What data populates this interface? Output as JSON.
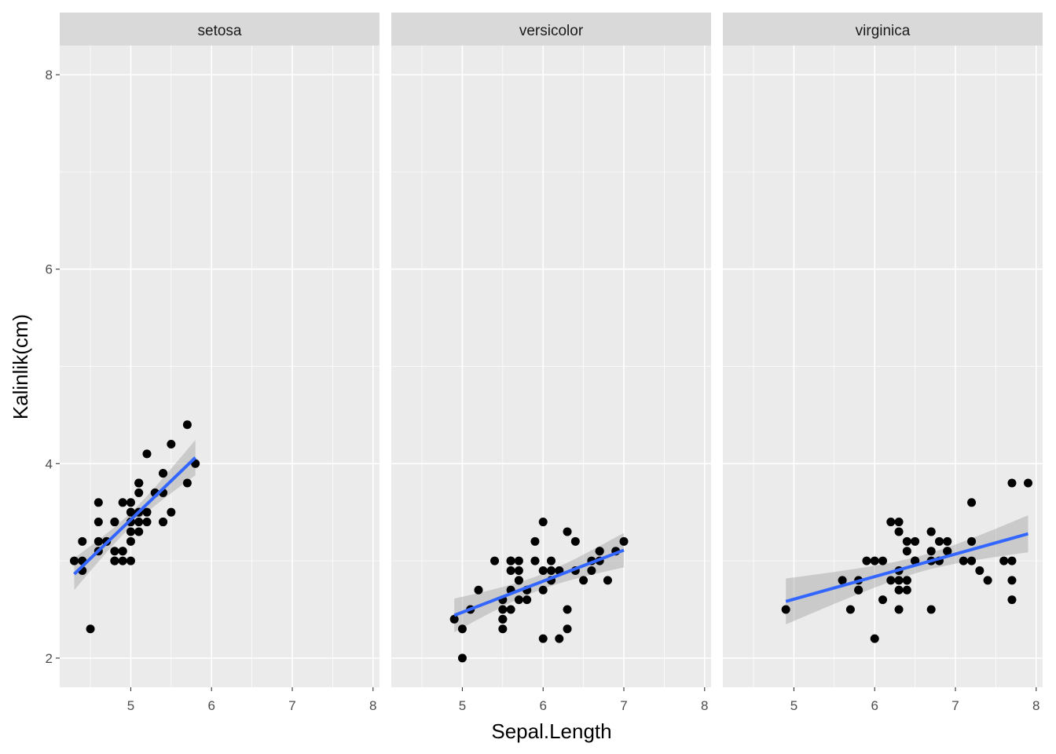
{
  "chart_data": {
    "type": "scatter",
    "title": "",
    "xlabel": "Sepal.Length",
    "ylabel": "Kalinlik(cm)",
    "xlim": [
      4.3,
      7.9
    ],
    "ylim": [
      2,
      8
    ],
    "x_ticks": [
      "5",
      "6",
      "7",
      "8"
    ],
    "y_ticks": [
      "2",
      "4",
      "6",
      "8"
    ],
    "grid": true,
    "smooth": {
      "method": "lm",
      "se": true,
      "color": "#3366FF"
    },
    "colors": {
      "panel_bg": "#EBEBEB",
      "strip_bg": "#D9D9D9",
      "grid": "#FFFFFF",
      "point": "#000000",
      "band": "#999999"
    },
    "facets": [
      {
        "label": "setosa",
        "points": [
          [
            5.1,
            3.5
          ],
          [
            4.9,
            3.0
          ],
          [
            4.7,
            3.2
          ],
          [
            4.6,
            3.1
          ],
          [
            5.0,
            3.6
          ],
          [
            5.4,
            3.9
          ],
          [
            4.6,
            3.4
          ],
          [
            5.0,
            3.4
          ],
          [
            4.4,
            2.9
          ],
          [
            4.9,
            3.1
          ],
          [
            5.4,
            3.7
          ],
          [
            4.8,
            3.4
          ],
          [
            4.8,
            3.0
          ],
          [
            4.3,
            3.0
          ],
          [
            5.8,
            4.0
          ],
          [
            5.7,
            4.4
          ],
          [
            5.4,
            3.9
          ],
          [
            5.1,
            3.5
          ],
          [
            5.7,
            3.8
          ],
          [
            5.1,
            3.8
          ],
          [
            5.4,
            3.4
          ],
          [
            5.1,
            3.7
          ],
          [
            4.6,
            3.6
          ],
          [
            5.1,
            3.3
          ],
          [
            4.8,
            3.4
          ],
          [
            5.0,
            3.0
          ],
          [
            5.0,
            3.4
          ],
          [
            5.2,
            3.5
          ],
          [
            5.2,
            3.4
          ],
          [
            4.7,
            3.2
          ],
          [
            4.8,
            3.1
          ],
          [
            5.4,
            3.4
          ],
          [
            5.2,
            4.1
          ],
          [
            5.5,
            4.2
          ],
          [
            4.9,
            3.1
          ],
          [
            5.0,
            3.2
          ],
          [
            5.5,
            3.5
          ],
          [
            4.9,
            3.6
          ],
          [
            4.4,
            3.0
          ],
          [
            5.1,
            3.4
          ],
          [
            5.0,
            3.5
          ],
          [
            4.5,
            2.3
          ],
          [
            4.4,
            3.2
          ],
          [
            5.0,
            3.5
          ],
          [
            5.1,
            3.8
          ],
          [
            4.8,
            3.0
          ],
          [
            5.1,
            3.8
          ],
          [
            4.6,
            3.2
          ],
          [
            5.3,
            3.7
          ],
          [
            5.0,
            3.3
          ]
        ]
      },
      {
        "label": "versicolor",
        "points": [
          [
            7.0,
            3.2
          ],
          [
            6.4,
            3.2
          ],
          [
            6.9,
            3.1
          ],
          [
            5.5,
            2.3
          ],
          [
            6.5,
            2.8
          ],
          [
            5.7,
            2.8
          ],
          [
            6.3,
            3.3
          ],
          [
            4.9,
            2.4
          ],
          [
            6.6,
            2.9
          ],
          [
            5.2,
            2.7
          ],
          [
            5.0,
            2.0
          ],
          [
            5.9,
            3.0
          ],
          [
            6.0,
            2.2
          ],
          [
            6.1,
            2.9
          ],
          [
            5.6,
            2.9
          ],
          [
            6.7,
            3.1
          ],
          [
            5.6,
            3.0
          ],
          [
            5.8,
            2.7
          ],
          [
            6.2,
            2.2
          ],
          [
            5.6,
            2.5
          ],
          [
            5.9,
            3.2
          ],
          [
            6.1,
            2.8
          ],
          [
            6.3,
            2.5
          ],
          [
            6.1,
            2.8
          ],
          [
            6.4,
            2.9
          ],
          [
            6.6,
            3.0
          ],
          [
            6.8,
            2.8
          ],
          [
            6.7,
            3.0
          ],
          [
            6.0,
            2.9
          ],
          [
            5.7,
            2.6
          ],
          [
            5.5,
            2.4
          ],
          [
            5.5,
            2.4
          ],
          [
            5.8,
            2.7
          ],
          [
            6.0,
            2.7
          ],
          [
            5.4,
            3.0
          ],
          [
            6.0,
            3.4
          ],
          [
            6.7,
            3.1
          ],
          [
            6.3,
            2.3
          ],
          [
            5.6,
            3.0
          ],
          [
            5.5,
            2.5
          ],
          [
            5.5,
            2.6
          ],
          [
            6.1,
            3.0
          ],
          [
            5.8,
            2.6
          ],
          [
            5.0,
            2.3
          ],
          [
            5.6,
            2.7
          ],
          [
            5.7,
            3.0
          ],
          [
            5.7,
            2.9
          ],
          [
            6.2,
            2.9
          ],
          [
            5.1,
            2.5
          ],
          [
            5.7,
            2.8
          ]
        ]
      },
      {
        "label": "virginica",
        "points": [
          [
            6.3,
            3.3
          ],
          [
            5.8,
            2.7
          ],
          [
            7.1,
            3.0
          ],
          [
            6.3,
            2.9
          ],
          [
            6.5,
            3.0
          ],
          [
            7.6,
            3.0
          ],
          [
            4.9,
            2.5
          ],
          [
            7.3,
            2.9
          ],
          [
            6.7,
            2.5
          ],
          [
            7.2,
            3.6
          ],
          [
            6.5,
            3.2
          ],
          [
            6.4,
            2.7
          ],
          [
            6.8,
            3.0
          ],
          [
            5.7,
            2.5
          ],
          [
            5.8,
            2.8
          ],
          [
            6.4,
            3.2
          ],
          [
            6.5,
            3.0
          ],
          [
            7.7,
            3.8
          ],
          [
            7.7,
            2.6
          ],
          [
            6.0,
            2.2
          ],
          [
            6.9,
            3.2
          ],
          [
            5.6,
            2.8
          ],
          [
            7.7,
            2.8
          ],
          [
            6.3,
            2.7
          ],
          [
            6.7,
            3.3
          ],
          [
            7.2,
            3.2
          ],
          [
            6.2,
            2.8
          ],
          [
            6.1,
            3.0
          ],
          [
            6.4,
            2.8
          ],
          [
            7.2,
            3.0
          ],
          [
            7.4,
            2.8
          ],
          [
            7.9,
            3.8
          ],
          [
            6.4,
            2.8
          ],
          [
            6.3,
            2.8
          ],
          [
            6.1,
            2.6
          ],
          [
            7.7,
            3.0
          ],
          [
            6.3,
            3.4
          ],
          [
            6.4,
            3.1
          ],
          [
            6.0,
            3.0
          ],
          [
            6.9,
            3.1
          ],
          [
            6.7,
            3.1
          ],
          [
            6.9,
            3.1
          ],
          [
            5.8,
            2.7
          ],
          [
            6.8,
            3.2
          ],
          [
            6.7,
            3.3
          ],
          [
            6.7,
            3.0
          ],
          [
            6.3,
            2.5
          ],
          [
            6.5,
            3.0
          ],
          [
            6.2,
            3.4
          ],
          [
            5.9,
            3.0
          ]
        ]
      }
    ]
  }
}
